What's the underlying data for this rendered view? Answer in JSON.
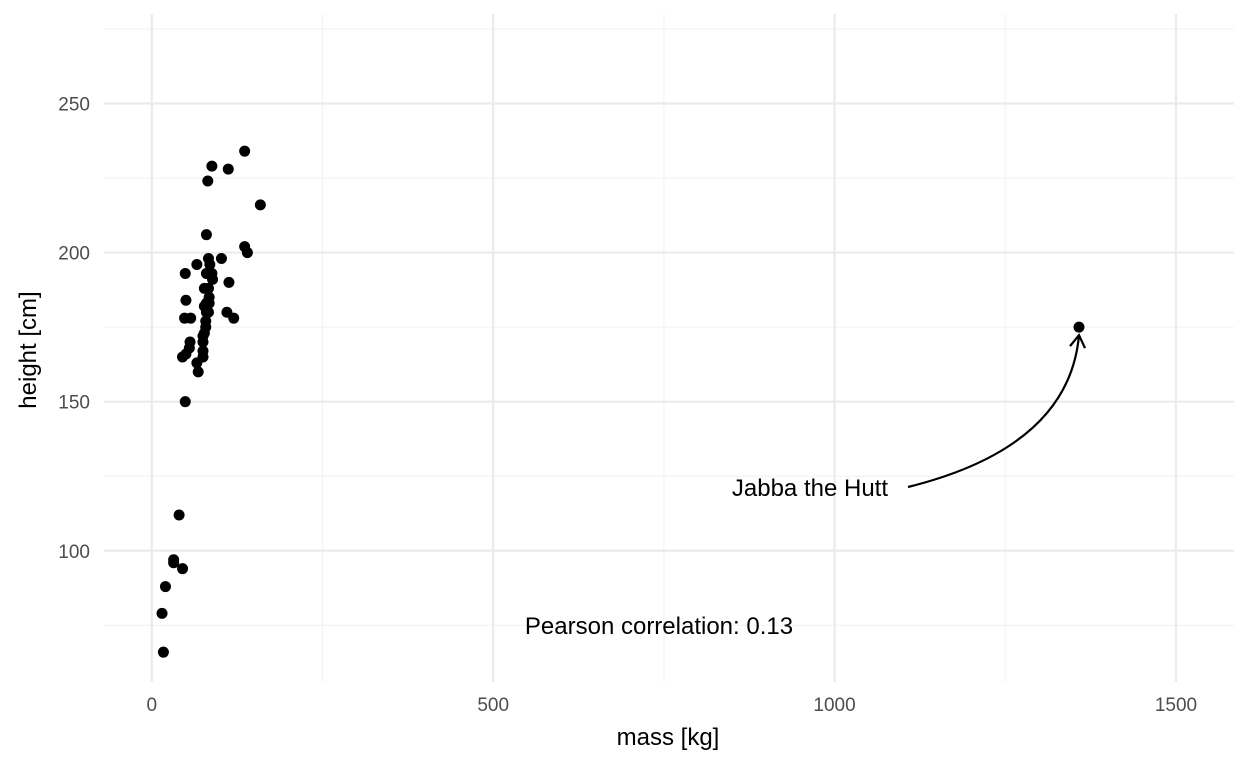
{
  "chart_data": {
    "type": "scatter",
    "xlabel": "mass [kg]",
    "ylabel": "height [cm]",
    "xlim": [
      -70,
      1585
    ],
    "ylim": [
      56,
      280
    ],
    "x_ticks": [
      0,
      500,
      1000,
      1500
    ],
    "y_ticks": [
      100,
      150,
      200,
      250
    ],
    "x_tick_labels": [
      "0",
      "500",
      "1000",
      "1500"
    ],
    "y_tick_labels": [
      "100",
      "150",
      "200",
      "250"
    ],
    "grid": true,
    "points": [
      {
        "x": 17,
        "y": 66
      },
      {
        "x": 15,
        "y": 79
      },
      {
        "x": 20,
        "y": 88
      },
      {
        "x": 32,
        "y": 97
      },
      {
        "x": 32,
        "y": 96
      },
      {
        "x": 45,
        "y": 94
      },
      {
        "x": 40,
        "y": 112
      },
      {
        "x": 49,
        "y": 150
      },
      {
        "x": 68,
        "y": 160
      },
      {
        "x": 45,
        "y": 165
      },
      {
        "x": 50,
        "y": 166
      },
      {
        "x": 55,
        "y": 168
      },
      {
        "x": 56,
        "y": 170
      },
      {
        "x": 66,
        "y": 163
      },
      {
        "x": 75,
        "y": 165
      },
      {
        "x": 75,
        "y": 167
      },
      {
        "x": 75,
        "y": 170
      },
      {
        "x": 75,
        "y": 172
      },
      {
        "x": 77,
        "y": 173
      },
      {
        "x": 79,
        "y": 175
      },
      {
        "x": 79,
        "y": 177
      },
      {
        "x": 48,
        "y": 178
      },
      {
        "x": 57,
        "y": 178
      },
      {
        "x": 80,
        "y": 180
      },
      {
        "x": 83,
        "y": 180
      },
      {
        "x": 77,
        "y": 182
      },
      {
        "x": 80,
        "y": 183
      },
      {
        "x": 84,
        "y": 183
      },
      {
        "x": 84,
        "y": 185
      },
      {
        "x": 50,
        "y": 184
      },
      {
        "x": 77,
        "y": 188
      },
      {
        "x": 83,
        "y": 188
      },
      {
        "x": 80,
        "y": 193
      },
      {
        "x": 88,
        "y": 193
      },
      {
        "x": 49,
        "y": 193
      },
      {
        "x": 89,
        "y": 191
      },
      {
        "x": 85,
        "y": 196
      },
      {
        "x": 66,
        "y": 196
      },
      {
        "x": 83,
        "y": 198
      },
      {
        "x": 102,
        "y": 198
      },
      {
        "x": 80,
        "y": 206
      },
      {
        "x": 110,
        "y": 180
      },
      {
        "x": 113,
        "y": 190
      },
      {
        "x": 120,
        "y": 178
      },
      {
        "x": 136,
        "y": 202
      },
      {
        "x": 140,
        "y": 200
      },
      {
        "x": 159,
        "y": 216
      },
      {
        "x": 82,
        "y": 224
      },
      {
        "x": 88,
        "y": 229
      },
      {
        "x": 112,
        "y": 228
      },
      {
        "x": 136,
        "y": 234
      },
      {
        "x": 1358,
        "y": 175
      }
    ],
    "annotations": {
      "correlation": "Pearson correlation: 0.13",
      "outlier_label": "Jabba the Hutt"
    }
  }
}
